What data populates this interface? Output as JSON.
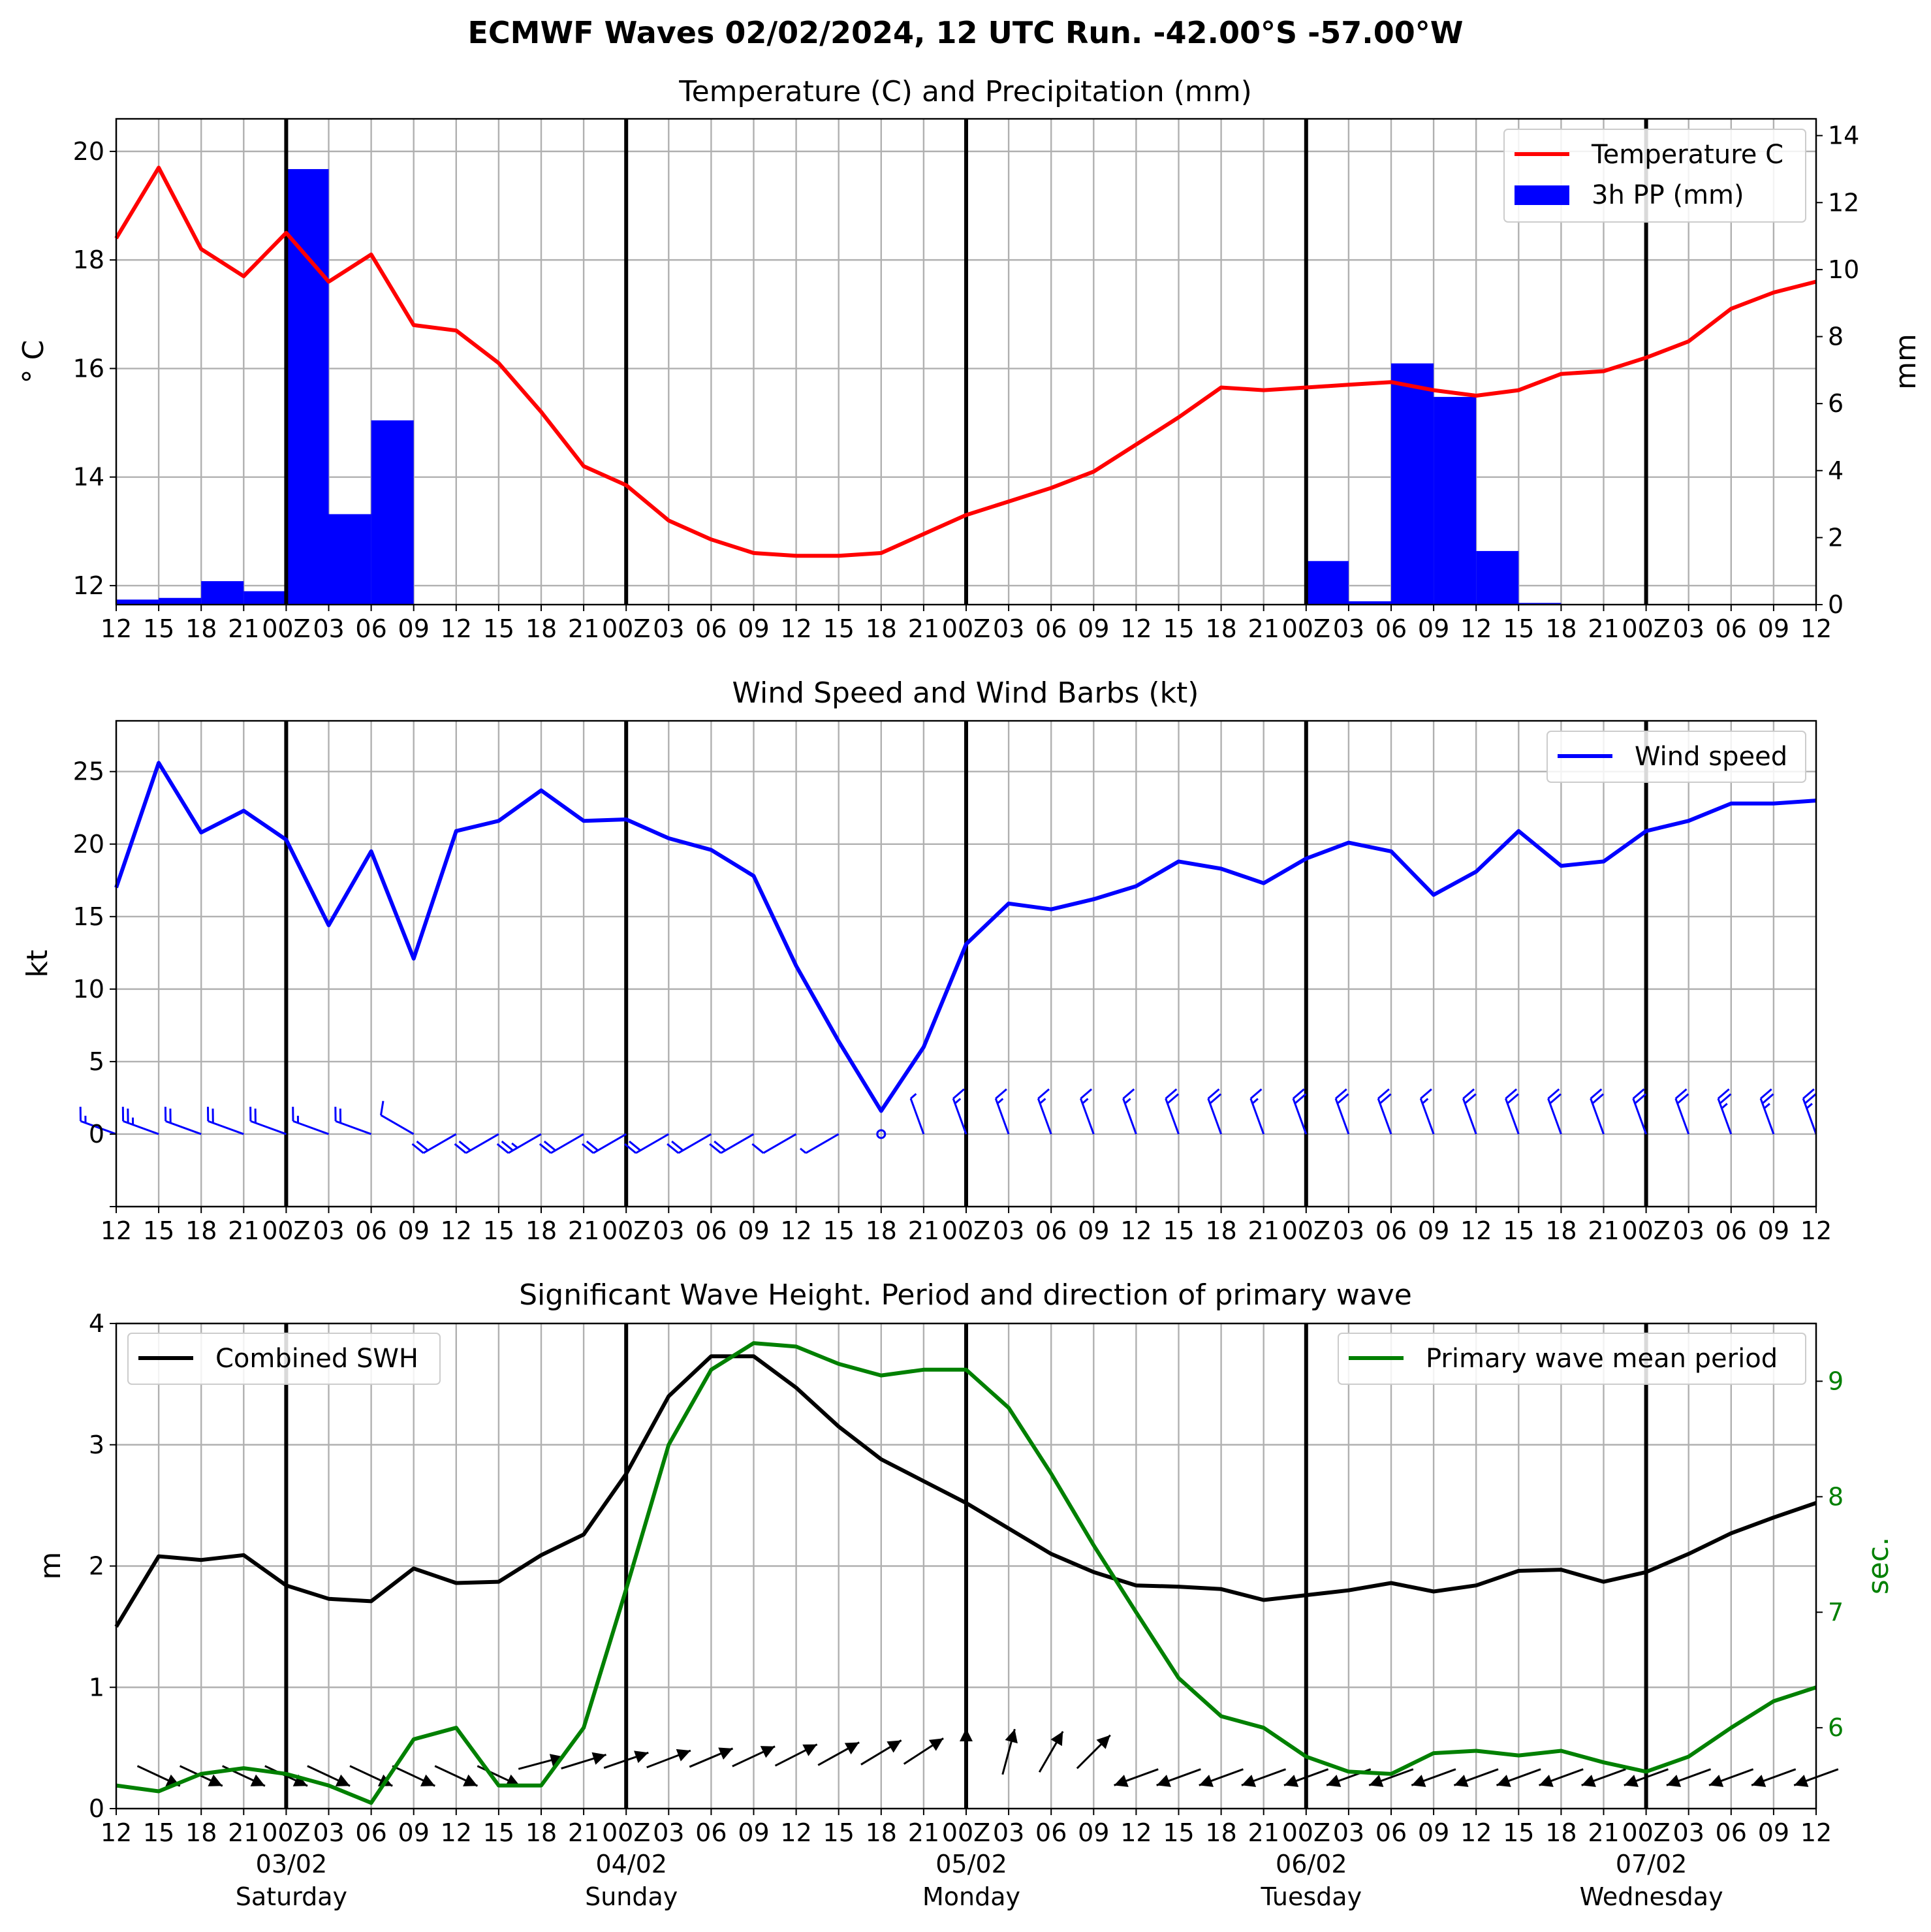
{
  "suptitle": "ECMWF Waves 02/02/2024, 12 UTC Run. -42.00°S -57.00°W",
  "time_ticks": [
    "12",
    "15",
    "18",
    "21",
    "00Z",
    "03",
    "06",
    "09",
    "12",
    "15",
    "18",
    "21",
    "00Z",
    "03",
    "06",
    "09",
    "12",
    "15",
    "18",
    "21",
    "00Z",
    "03",
    "06",
    "09",
    "12",
    "15",
    "18",
    "21",
    "00Z",
    "03",
    "06",
    "09",
    "12",
    "15",
    "18",
    "21",
    "00Z",
    "03",
    "06",
    "09",
    "12"
  ],
  "day_labels": [
    {
      "date": "03/02",
      "day": "Saturday",
      "index": 4
    },
    {
      "date": "04/02",
      "day": "Sunday",
      "index": 12
    },
    {
      "date": "05/02",
      "day": "Monday",
      "index": 20
    },
    {
      "date": "06/02",
      "day": "Tuesday",
      "index": 28
    },
    {
      "date": "07/02",
      "day": "Wednesday",
      "index": 36
    }
  ],
  "colors": {
    "temperature": "#ff0000",
    "precip": "#0000ff",
    "wind": "#0000ff",
    "swh": "#000000",
    "period": "#008000",
    "grid": "#b0b0b0"
  },
  "panel1": {
    "title": "Temperature (C) and Precipitation (mm)",
    "ylabel_left": "$^\\circ$C",
    "ylabel_left_text": "° C",
    "ylabel_right": "mm",
    "legend": [
      "Temperature C",
      "3h PP (mm)"
    ],
    "left_ticks": [
      "12",
      "14",
      "16",
      "18",
      "20"
    ],
    "right_ticks": [
      "0",
      "2",
      "4",
      "6",
      "8",
      "10",
      "12",
      "14"
    ]
  },
  "panel2": {
    "title": "Wind Speed and Wind Barbs (kt)",
    "ylabel": "kt",
    "legend": [
      "Wind speed"
    ],
    "ticks": [
      "0",
      "5",
      "10",
      "15",
      "20",
      "25"
    ]
  },
  "panel3": {
    "title": "Significant Wave Height. Period and direction of primary wave",
    "ylabel_left": "m",
    "ylabel_right": "sec.",
    "legend_left": [
      "Combined SWH"
    ],
    "legend_right": [
      "Primary wave mean period"
    ],
    "left_ticks": [
      "0",
      "1",
      "2",
      "3",
      "4"
    ],
    "right_ticks": [
      "6",
      "7",
      "8",
      "9"
    ]
  },
  "chart_data": [
    {
      "type": "line",
      "title": "Temperature (C) and Precipitation (mm)",
      "x": [
        "02/02 12",
        "02/02 15",
        "02/02 18",
        "02/02 21",
        "03/02 00",
        "03/02 03",
        "03/02 06",
        "03/02 09",
        "03/02 12",
        "03/02 15",
        "03/02 18",
        "03/02 21",
        "04/02 00",
        "04/02 03",
        "04/02 06",
        "04/02 09",
        "04/02 12",
        "04/02 15",
        "04/02 18",
        "04/02 21",
        "05/02 00",
        "05/02 03",
        "05/02 06",
        "05/02 09",
        "05/02 12",
        "05/02 15",
        "05/02 18",
        "05/02 21",
        "06/02 00",
        "06/02 03",
        "06/02 06",
        "06/02 09",
        "06/02 12",
        "06/02 15",
        "06/02 18",
        "06/02 21",
        "07/02 00",
        "07/02 03",
        "07/02 06",
        "07/02 09",
        "07/02 12"
      ],
      "series": [
        {
          "name": "Temperature C",
          "axis": "left",
          "values": [
            18.4,
            19.7,
            18.2,
            17.7,
            18.5,
            17.6,
            18.1,
            16.8,
            16.7,
            16.1,
            15.2,
            14.2,
            13.85,
            13.2,
            12.85,
            12.6,
            12.55,
            12.55,
            12.6,
            12.95,
            13.3,
            13.55,
            13.8,
            14.1,
            14.6,
            15.1,
            15.65,
            15.6,
            15.65,
            15.7,
            15.75,
            15.6,
            15.5,
            15.6,
            15.9,
            15.95,
            16.2,
            16.5,
            17.1,
            17.4,
            17.6
          ]
        },
        {
          "name": "3h PP (mm)",
          "type": "bar",
          "axis": "right",
          "values": [
            0.15,
            0.2,
            0.7,
            0.4,
            13.0,
            2.7,
            5.5,
            0,
            0,
            0,
            0,
            0,
            0,
            0,
            0,
            0,
            0,
            0,
            0,
            0,
            0,
            0,
            0,
            0,
            0,
            0,
            0,
            0,
            1.3,
            0.1,
            7.2,
            6.2,
            1.6,
            0.05,
            0,
            0,
            0,
            0,
            0,
            0,
            0
          ]
        }
      ],
      "ylim_left": [
        11.65,
        20.6
      ],
      "ylim_right": [
        0,
        14.5
      ],
      "legend_position": "top-right"
    },
    {
      "type": "line",
      "title": "Wind Speed and Wind Barbs (kt)",
      "ylabel": "kt",
      "series": [
        {
          "name": "Wind speed",
          "values": [
            17.0,
            25.6,
            20.8,
            22.3,
            20.3,
            14.4,
            19.5,
            12.1,
            20.9,
            21.6,
            23.7,
            21.6,
            21.7,
            20.4,
            19.6,
            17.8,
            11.6,
            6.4,
            1.6,
            6.0,
            13.1,
            15.9,
            15.5,
            16.2,
            17.1,
            18.8,
            18.3,
            17.3,
            19.0,
            20.1,
            19.5,
            16.5,
            18.1,
            20.9,
            18.5,
            18.8,
            20.9,
            21.6,
            22.8,
            22.8,
            23.0
          ]
        }
      ],
      "ylim": [
        -5,
        28.5
      ],
      "legend_position": "top-right"
    },
    {
      "type": "line",
      "title": "Significant Wave Height. Period and direction of primary wave",
      "series": [
        {
          "name": "Combined SWH",
          "axis": "left",
          "values": [
            1.5,
            2.08,
            2.05,
            2.09,
            1.84,
            1.73,
            1.71,
            1.98,
            1.86,
            1.87,
            2.09,
            2.26,
            2.76,
            3.4,
            3.73,
            3.73,
            3.47,
            3.15,
            2.88,
            2.7,
            2.52,
            2.31,
            2.1,
            1.95,
            1.84,
            1.83,
            1.81,
            1.72,
            1.76,
            1.8,
            1.86,
            1.79,
            1.84,
            1.96,
            1.97,
            1.87,
            1.95,
            2.1,
            2.27,
            2.4,
            2.52
          ]
        },
        {
          "name": "Primary wave mean period",
          "axis": "right",
          "values": [
            5.5,
            5.45,
            5.6,
            5.65,
            5.6,
            5.5,
            5.35,
            5.9,
            6.0,
            5.5,
            5.5,
            6.0,
            7.2,
            8.45,
            9.1,
            9.33,
            9.3,
            9.15,
            9.05,
            9.1,
            9.1,
            8.77,
            8.2,
            7.58,
            7.0,
            6.43,
            6.1,
            6.0,
            5.75,
            5.62,
            5.6,
            5.78,
            5.8,
            5.76,
            5.8,
            5.7,
            5.62,
            5.75,
            6.0,
            6.23,
            6.35
          ]
        }
      ],
      "ylim_left": [
        0,
        4
      ],
      "ylim_right": [
        5.3,
        9.5
      ],
      "legend_position_left": "top-left",
      "legend_position_right": "top-right"
    }
  ]
}
